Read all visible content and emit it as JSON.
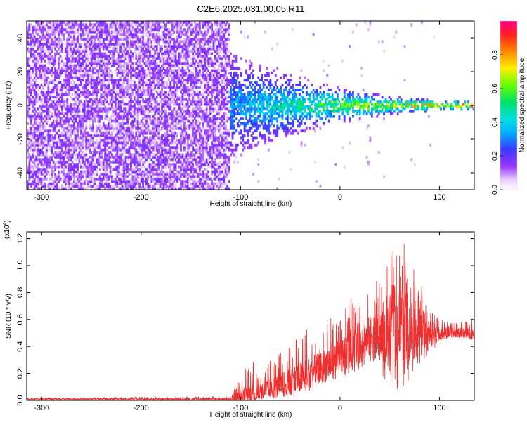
{
  "title": "C2E6.2025.031.00.05.R11",
  "colors": {
    "series_red": "#ee3030",
    "purple": "#7a22e6",
    "axis": "#000000"
  },
  "chart_data": [
    {
      "type": "heatmap",
      "xlabel": "Height of straight line (km)",
      "ylabel": "Frequency (Hz)",
      "xlim": [
        -315,
        135
      ],
      "ylim": [
        -50,
        50
      ],
      "xticks": [
        -300,
        -200,
        -100,
        0,
        100
      ],
      "xtick_labels": [
        "-300",
        "-200",
        "-100",
        "0",
        "100"
      ],
      "yticks": [
        -40,
        -20,
        0,
        20,
        40
      ],
      "ytick_labels": [
        "-40",
        "-20",
        "0",
        "20",
        "40"
      ],
      "noise_region_xmax": -110,
      "band_center_hz": 0,
      "colorbar": {
        "label": "Normalized spectral amplitude",
        "range": [
          0,
          1
        ],
        "ticks": [
          0.0,
          0.2,
          0.4,
          0.6,
          0.8
        ],
        "tick_labels": [
          "0.0",
          "0.2",
          "0.4",
          "0.6",
          "0.8"
        ]
      }
    },
    {
      "type": "line",
      "xlabel": "Height of straight line (km)",
      "ylabel": "SNR (10 * v/v)",
      "multiplier_label": "(x10",
      "multiplier_exp": "4",
      "multiplier_close": ")",
      "xlim": [
        -315,
        135
      ],
      "ylim": [
        0,
        1.25
      ],
      "xticks": [
        -300,
        -200,
        -100,
        0,
        100
      ],
      "xtick_labels": [
        "-300",
        "-200",
        "-100",
        "0",
        "100"
      ],
      "yticks": [
        0.0,
        0.2,
        0.4,
        0.6,
        0.8,
        1.0,
        1.2
      ],
      "ytick_labels": [
        "0.0",
        "0.2",
        "0.4",
        "0.6",
        "0.8",
        "1.0",
        "1.2"
      ],
      "envelope": {
        "x": [
          -315,
          -110,
          -100,
          -90,
          -80,
          -70,
          -60,
          -50,
          -40,
          -30,
          -20,
          -10,
          0,
          10,
          20,
          30,
          40,
          50,
          60,
          70,
          80,
          90,
          100,
          110,
          120,
          135
        ],
        "center": [
          0.01,
          0.01,
          0.03,
          0.05,
          0.07,
          0.09,
          0.11,
          0.13,
          0.17,
          0.2,
          0.24,
          0.28,
          0.32,
          0.38,
          0.43,
          0.47,
          0.5,
          0.52,
          0.53,
          0.53,
          0.52,
          0.51,
          0.5,
          0.5,
          0.5,
          0.5
        ],
        "upper": [
          0.02,
          0.03,
          0.2,
          0.3,
          0.25,
          0.3,
          0.35,
          0.45,
          0.5,
          0.55,
          0.5,
          0.65,
          0.6,
          0.75,
          0.78,
          0.82,
          0.95,
          1.05,
          1.22,
          1.1,
          0.9,
          0.7,
          0.62,
          0.58,
          0.58,
          0.62
        ],
        "lower": [
          0.0,
          0.0,
          0.0,
          0.0,
          0.0,
          0.01,
          0.02,
          0.03,
          0.05,
          0.08,
          0.1,
          0.12,
          0.15,
          0.2,
          0.22,
          0.25,
          0.2,
          0.1,
          0.05,
          0.15,
          0.25,
          0.35,
          0.42,
          0.45,
          0.45,
          0.45
        ]
      }
    }
  ]
}
